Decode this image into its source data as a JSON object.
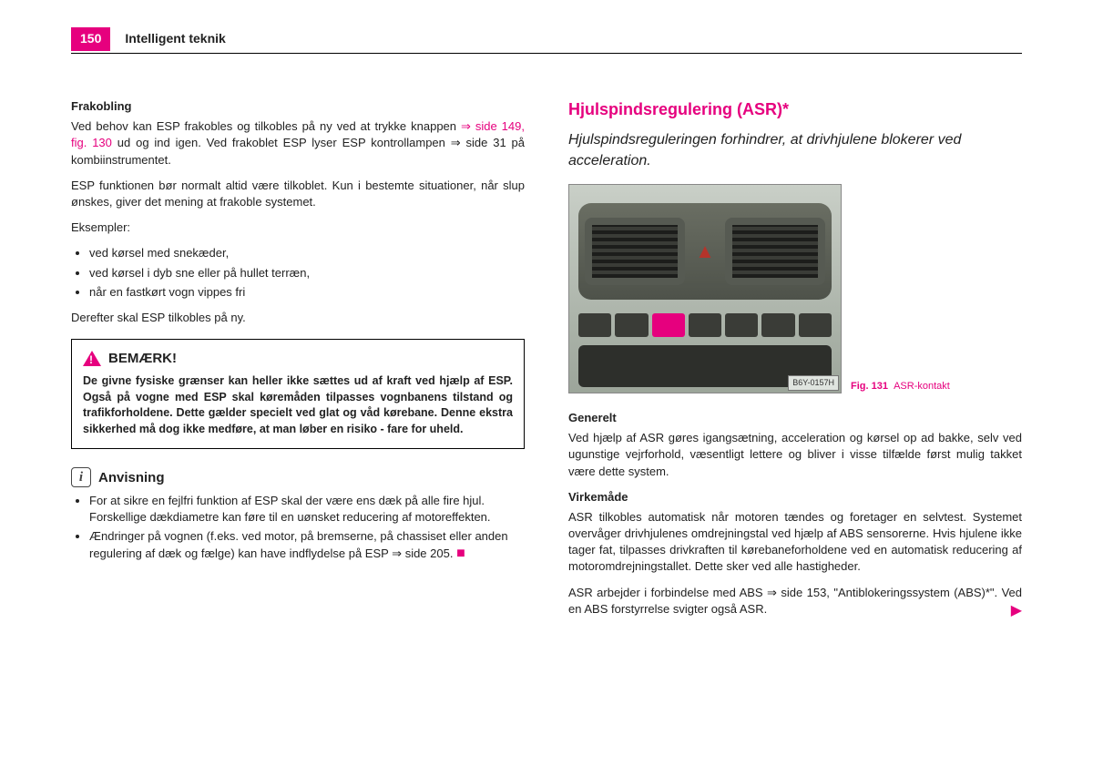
{
  "accent": "#e6007e",
  "header": {
    "page": "150",
    "chapter": "Intelligent teknik"
  },
  "left": {
    "h_frak": "Frakobling",
    "p1a": "Ved behov kan ESP frakobles og tilkobles på ny ved at trykke knappen ",
    "p1ref": "⇒ side 149, fig. 130",
    "p1b": " ud og ind igen. Ved frakoblet ESP lyser ESP kontrol­lampen ⇒ side 31 på kombiinstrumentet.",
    "p2": "ESP funktionen bør normalt altid være tilkoblet. Kun i bestemte situationer, når slup ønskes, giver det mening at frakoble systemet.",
    "p3": "Eksempler:",
    "b1": "ved kørsel med snekæder,",
    "b2": "ved kørsel i dyb sne eller på hullet terræn,",
    "b3": "når en fastkørt vogn vippes fri",
    "p4": "Derefter skal ESP tilkobles på ny.",
    "warn_title": "BEMÆRK!",
    "warn_body": "De givne fysiske grænser kan heller ikke sættes ud af kraft ved hjælp af ESP. Også på vogne med ESP skal køremåden tilpasses vognbanens tilstand og trafikforholdene. Dette gælder specielt ved glat og våd kørebane. Denne ekstra sikkerhed må dog ikke medføre, at man løber en risiko - fare for uheld.",
    "info_title": "Anvisning",
    "info_p1": "For at sikre en fejlfri funktion af ESP skal der være ens dæk på alle fire hjul. Forskellige dækdiametre kan føre til en uønsket reducering af motoreffekten.",
    "info_p2a": "Ændringer på vognen (f.eks. ved motor, på bremserne, på chassiset eller anden regulering af dæk og fælge) kan have indflydelse på ESP ⇒ side 205. "
  },
  "right": {
    "h2": "Hjulspindsregulering (ASR)*",
    "lead": "Hjulspindsreguleringen forhindrer, at drivhjulene blokerer ved acceleration.",
    "imgcode": "B6Y-0157H",
    "fig_label": "Fig. 131",
    "fig_caption": "ASR-kontakt",
    "h_gen": "Generelt",
    "p_gen": "Ved hjælp af ASR gøres igangsætning, acceleration og kørsel op ad bakke, selv ved ugunstige vejrforhold, væsentligt lettere og bliver i visse tilfælde først mulig takket være dette system.",
    "h_virk": "Virkemåde",
    "p_v1": "ASR tilkobles automatisk når motoren tændes og foretager en selvtest. Systemet overvåger drivhjulenes omdrejningstal ved hjælp af ABS sensorerne. Hvis hjulene ikke tager fat, tilpasses drivkraften til kørebaneforholdene ved en automatisk reducering af motoromdrejningstallet. Dette sker ved alle hastigheder.",
    "p_v2": "ASR arbejder i forbindelse med ABS ⇒ side 153, \"Antiblokeringssystem (ABS)*\". Ved en ABS forstyrrelse svigter også ASR."
  }
}
